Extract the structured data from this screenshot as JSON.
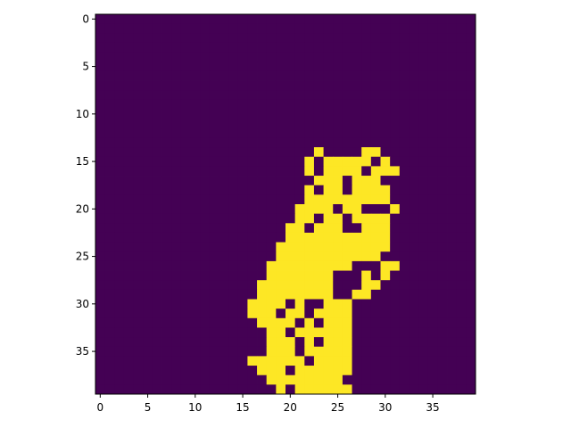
{
  "chart_data": {
    "type": "heatmap",
    "title": "",
    "xlabel": "",
    "ylabel": "",
    "rows": 40,
    "cols": 40,
    "xlim": [
      -0.5,
      39.5
    ],
    "ylim": [
      39.5,
      -0.5
    ],
    "x_ticks": [
      0,
      5,
      10,
      15,
      20,
      25,
      30,
      35
    ],
    "y_ticks": [
      0,
      5,
      10,
      15,
      20,
      25,
      30,
      35
    ],
    "values_legend": {
      "0": "background",
      "1": "foreground"
    },
    "colors": {
      "0": "#440154",
      "1": "#fde725"
    },
    "mask_rows": [
      "0000000000000000000000000000000000000000",
      "0000000000000000000000000000000000000000",
      "0000000000000000000000000000000000000000",
      "0000000000000000000000000000000000000000",
      "0000000000000000000000000000000000000000",
      "0000000000000000000000000000000000000000",
      "0000000000000000000000000000000000000000",
      "0000000000000000000000000000000000000000",
      "0000000000000000000000000000000000000000",
      "0000000000000000000000000000000000000000",
      "0000000000000000000000000000000000000000",
      "0000000000000000000000000000000000000000",
      "0000000000000000000000000000000000000000",
      "0000000000000000000000000000000000000000",
      "0000000000000000000000010000110000000000",
      "0000000000000000000000101111101000000000",
      "0000000000000000000000101111011100000000",
      "0000000000000000000000011101110000000000",
      "0000000000000000000000101101111000000000",
      "0000000000000000000000111111111000000000",
      "0000000000000000000001111011000100000000",
      "0000000000000000000001101101111000000000",
      "0000000000000000000011011100111000000000",
      "0000000000000000000011111111111000000000",
      "0000000000000000000111111111111000000000",
      "0000000000000000000111111111110000000000",
      "0000000000000000001111111110001100000000",
      "0000000000000000001111111000101000000000",
      "0000000000000000011111111000110000000000",
      "0000000000000000011111111001100000000000",
      "0000000000000000111101001110000000000000",
      "0000000000000000111011011110000000000000",
      "0000000000000000011110101110000000000000",
      "0000000000000000001101111110000000000000",
      "0000000000000000001110101110000000000000",
      "0000000000000000001110111110000000000000",
      "0000000000000000111111011110000000000000",
      "0000000000000000011101111110000000000000",
      "0000000000000000001111111100000000000000",
      "0000000000000000000101111110000000000000"
    ]
  }
}
